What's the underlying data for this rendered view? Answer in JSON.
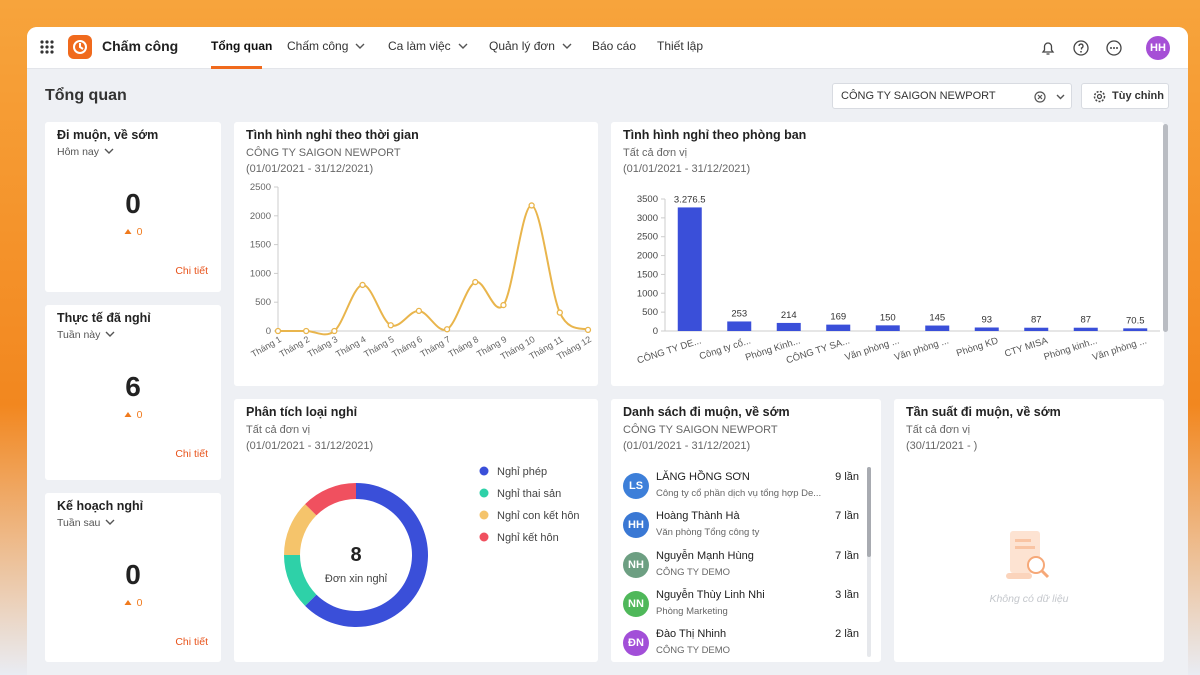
{
  "header": {
    "app_title": "Chấm công",
    "nav": [
      {
        "label": "Tổng quan",
        "active": true,
        "dropdown": false
      },
      {
        "label": "Chấm công",
        "active": false,
        "dropdown": true
      },
      {
        "label": "Ca làm việc",
        "active": false,
        "dropdown": true
      },
      {
        "label": "Quản lý đơn",
        "active": false,
        "dropdown": true
      },
      {
        "label": "Báo cáo",
        "active": false,
        "dropdown": false
      },
      {
        "label": "Thiết lập",
        "active": false,
        "dropdown": false
      }
    ],
    "avatar": "HH"
  },
  "toolbar": {
    "title": "Tổng quan",
    "company_select": "CÔNG TY SAIGON NEWPORT",
    "customize_button": "Tùy chỉnh"
  },
  "stat_cards": [
    {
      "title": "Đi muộn, về sớm",
      "period": "Hôm nay",
      "value": 0,
      "change": 0,
      "link": "Chi tiết"
    },
    {
      "title": "Thực tế đã nghỉ",
      "period": "Tuần này",
      "value": 6,
      "change": 0,
      "link": "Chi tiết"
    },
    {
      "title": "Kế hoạch nghỉ",
      "period": "Tuần sau",
      "value": 0,
      "change": 0,
      "link": "Chi tiết"
    }
  ],
  "chart_data": [
    {
      "type": "line",
      "title": "Tình hình nghỉ theo thời gian",
      "subtitle": "CÔNG TY SAIGON NEWPORT",
      "date_range": "(01/01/2021 - 31/12/2021)",
      "categories": [
        "Tháng 1",
        "Tháng 2",
        "Tháng 3",
        "Tháng 4",
        "Tháng 5",
        "Tháng 6",
        "Tháng 7",
        "Tháng 8",
        "Tháng 9",
        "Tháng 10",
        "Tháng 11",
        "Tháng 12"
      ],
      "values": [
        0,
        0,
        0,
        800,
        100,
        350,
        30,
        850,
        450,
        2180,
        320,
        20
      ],
      "color": "#e9b54c",
      "ylim": [
        0,
        2500
      ],
      "yticks": [
        0,
        500,
        1000,
        1500,
        2000,
        2500
      ],
      "grid": false
    },
    {
      "type": "bar",
      "title": "Tình hình nghỉ theo phòng ban",
      "subtitle": "Tất cả đơn vị",
      "date_range": "(01/01/2021 - 31/12/2021)",
      "categories": [
        "CÔNG TY DE...",
        "Công ty cổ...",
        "Phòng Kinh...",
        "CÔNG TY SA...",
        "Văn phòng ...",
        "Văn phòng ...",
        "Phòng KD",
        "CTY MISA",
        "Phòng kinh...",
        "Văn phòng ..."
      ],
      "values": [
        3276.5,
        253,
        214,
        169,
        150,
        145,
        93,
        87,
        87,
        70.5
      ],
      "value_labels": [
        "3.276.5",
        "253",
        "214",
        "169",
        "150",
        "145",
        "93",
        "87",
        "87",
        "70.5"
      ],
      "color": "#3a4fd9",
      "ylim": [
        0,
        3500
      ],
      "yticks": [
        0,
        500,
        1000,
        1500,
        2000,
        2500,
        3000,
        3500
      ],
      "grid": false
    },
    {
      "type": "pie",
      "title": "Phân tích loại nghỉ",
      "subtitle": "Tất cả đơn vị",
      "date_range": "(01/01/2021 - 31/12/2021)",
      "categories": [
        "Nghỉ phép",
        "Nghỉ thai sản",
        "Nghỉ con kết hôn",
        "Nghỉ kết hôn"
      ],
      "values": [
        5,
        1,
        1,
        1
      ],
      "colors": [
        "#3a4fd9",
        "#2ed1a8",
        "#f5c46b",
        "#f0505f"
      ],
      "center_value": 8,
      "center_label": "Đơn xin nghỉ"
    }
  ],
  "late_list": {
    "title": "Danh sách đi muộn, về sớm",
    "subtitle": "CÔNG TY SAIGON NEWPORT",
    "date_range": "(01/01/2021 - 31/12/2021)",
    "items": [
      {
        "initials": "LS",
        "color": "#3d7fd9",
        "name": "LĂNG HỒNG SƠN",
        "org": "Công ty cổ phần dịch vụ tổng hợp De...",
        "count": "9 lần"
      },
      {
        "initials": "HH",
        "color": "#3a78d4",
        "name": "Hoàng Thành Hà",
        "org": "Văn phòng Tổng công ty",
        "count": "7 lần"
      },
      {
        "initials": "NH",
        "color": "#6d9f82",
        "name": "Nguyễn Mạnh Hùng",
        "org": "CÔNG TY DEMO",
        "count": "7 lần"
      },
      {
        "initials": "NN",
        "color": "#4fb85a",
        "name": "Nguyễn Thùy Linh Nhi",
        "org": "Phòng Marketing",
        "count": "3 lần"
      },
      {
        "initials": "ĐN",
        "color": "#a24fd8",
        "name": "Đào Thị Nhinh",
        "org": "CÔNG TY DEMO",
        "count": "2 lần"
      }
    ]
  },
  "frequency": {
    "title": "Tần suất đi muộn, về sớm",
    "subtitle": "Tất cả đơn vị",
    "date_range": "(30/11/2021 - )",
    "empty_text": "Không có dữ liệu"
  }
}
